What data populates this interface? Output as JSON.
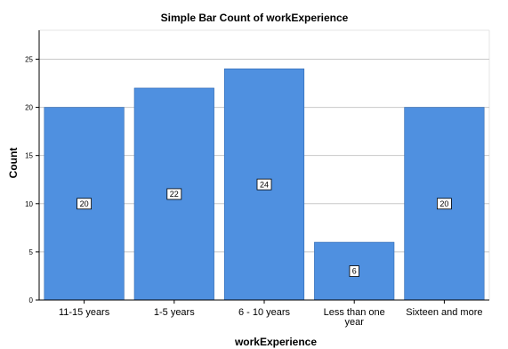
{
  "chart_data": {
    "type": "bar",
    "title": "Simple Bar Count of workExperience",
    "xlabel": "workExperience",
    "ylabel": "Count",
    "categories": [
      "11-15 years",
      "1-5 years",
      "6 - 10 years",
      "Less than one year",
      "Sixteen and more"
    ],
    "category_lines": [
      [
        "11-15 years"
      ],
      [
        "1-5 years"
      ],
      [
        "6 - 10 years"
      ],
      [
        "Less than one",
        "year"
      ],
      [
        "Sixteen and more"
      ]
    ],
    "values": [
      20,
      22,
      24,
      6,
      20
    ],
    "data_labels": [
      "20",
      "22",
      "24",
      "6",
      "20"
    ],
    "ylim": [
      0,
      28
    ],
    "yticks": [
      0,
      5,
      10,
      15,
      20,
      25
    ],
    "grid": true,
    "legend": "none",
    "colors": {
      "bar": "#4f90e0",
      "bar_stroke": "#2f68b0",
      "grid": "#c8c8c8",
      "axis": "#000000",
      "frame": "#e4e4e4"
    }
  }
}
